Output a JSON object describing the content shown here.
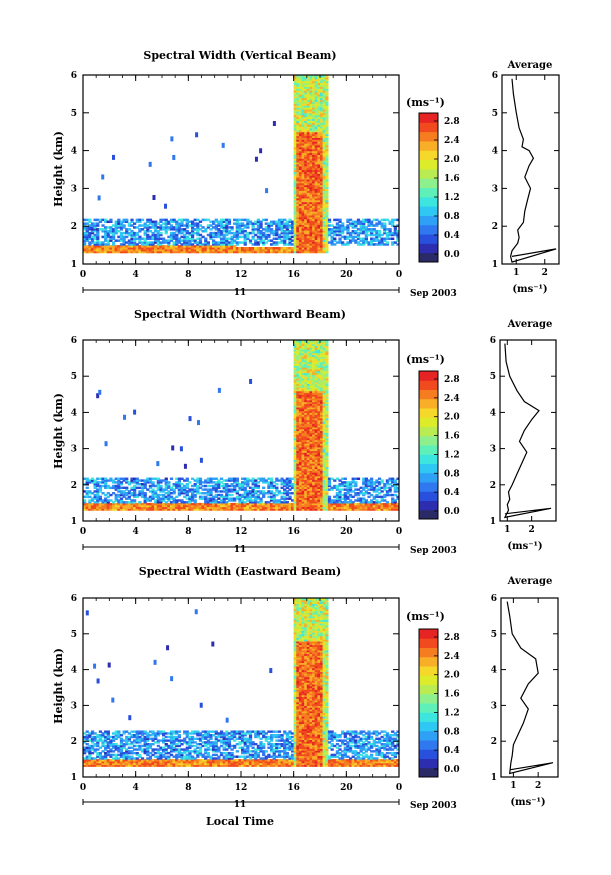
{
  "figure": {
    "xlabel": "Local Time",
    "day_label": "11",
    "date_label": "Sep 2003",
    "height_label": "Height (km)",
    "colorbar_unit": "(ms⁻¹)",
    "profile_title": "Average",
    "profile_xlabel": "(ms⁻¹)"
  },
  "panels": [
    {
      "title": "Spectral Width (Vertical Beam)",
      "profile_ticks": [
        "1",
        "2"
      ]
    },
    {
      "title": "Spectral Width (Northward Beam)",
      "profile_ticks": [
        "1",
        "2"
      ]
    },
    {
      "title": "Spectral Width (Eastward Beam)",
      "profile_ticks": [
        "1",
        "2"
      ]
    }
  ],
  "colorbar_ticks": [
    "0.0",
    "0.4",
    "0.8",
    "1.2",
    "1.6",
    "2.0",
    "2.4",
    "2.8"
  ],
  "chart_data": [
    {
      "type": "heatmap",
      "title": "Spectral Width (Vertical Beam)",
      "xlabel": "",
      "ylabel": "Height (km)",
      "x_ticks": [
        "0",
        "4",
        "8",
        "12",
        "16",
        "20",
        "0"
      ],
      "y_ticks": [
        "1",
        "2",
        "3",
        "4",
        "5",
        "6"
      ],
      "xlim": [
        0,
        24
      ],
      "ylim": [
        1,
        6
      ],
      "colorbar": {
        "label": "(ms⁻¹)",
        "range": [
          0.0,
          3.0
        ]
      },
      "features": [
        {
          "x": [
            0,
            11.5
          ],
          "y": [
            1.3,
            1.55
          ],
          "value": 2.8
        },
        {
          "x": [
            11.5,
            16
          ],
          "y": [
            1.3,
            1.45
          ],
          "value": 2.8
        },
        {
          "x": [
            0,
            24
          ],
          "y": [
            1.5,
            2.2
          ],
          "value": 0.8
        },
        {
          "x": [
            16,
            18.5
          ],
          "y": [
            1.3,
            6
          ],
          "value": 1.6
        },
        {
          "x": [
            16.2,
            18.2
          ],
          "y": [
            1.3,
            4.5
          ],
          "value": 2.9
        }
      ]
    },
    {
      "type": "line",
      "title": "Average",
      "xlabel": "(ms⁻¹)",
      "ylabel": "",
      "x_ticks": [
        "1",
        "2"
      ],
      "y_ticks": [
        "1",
        "2",
        "3",
        "4",
        "5",
        "6"
      ],
      "xlim": [
        0.5,
        2.5
      ],
      "ylim": [
        1,
        6
      ],
      "x": [
        0.85,
        0.9,
        1.0,
        1.1,
        1.25,
        1.2,
        1.45,
        1.6,
        1.45,
        1.3,
        1.5,
        1.4,
        1.3,
        1.25,
        1.05,
        1.1,
        1.05,
        0.95,
        0.85,
        0.8,
        0.85
      ],
      "y": [
        5.9,
        5.5,
        5.0,
        4.6,
        4.3,
        4.1,
        4.0,
        3.8,
        3.6,
        3.3,
        3.0,
        2.7,
        2.4,
        2.1,
        1.9,
        1.7,
        1.55,
        1.45,
        1.35,
        1.2,
        1.05
      ],
      "spike": {
        "x": 2.4,
        "y": 1.4
      }
    },
    {
      "type": "heatmap",
      "title": "Spectral Width (Northward Beam)",
      "xlabel": "",
      "ylabel": "Height (km)",
      "x_ticks": [
        "0",
        "4",
        "8",
        "12",
        "16",
        "20",
        "0"
      ],
      "y_ticks": [
        "1",
        "2",
        "3",
        "4",
        "5",
        "6"
      ],
      "xlim": [
        0,
        24
      ],
      "ylim": [
        1,
        6
      ],
      "colorbar": {
        "label": "(ms⁻¹)",
        "range": [
          0.0,
          3.0
        ]
      },
      "features": [
        {
          "x": [
            0,
            24
          ],
          "y": [
            1.3,
            1.5
          ],
          "value": 2.8
        },
        {
          "x": [
            0,
            24
          ],
          "y": [
            1.5,
            2.2
          ],
          "value": 0.8
        },
        {
          "x": [
            16,
            18.5
          ],
          "y": [
            1.3,
            6
          ],
          "value": 1.6
        },
        {
          "x": [
            16.2,
            18.2
          ],
          "y": [
            1.3,
            4.6
          ],
          "value": 2.9
        }
      ]
    },
    {
      "type": "line",
      "title": "Average",
      "xlabel": "(ms⁻¹)",
      "ylabel": "",
      "x_ticks": [
        "1",
        "2"
      ],
      "y_ticks": [
        "1",
        "2",
        "3",
        "4",
        "5",
        "6"
      ],
      "xlim": [
        0.7,
        3.0
      ],
      "ylim": [
        1,
        6
      ],
      "x": [
        0.9,
        0.95,
        1.1,
        1.4,
        1.7,
        2.3,
        2.0,
        1.7,
        1.5,
        1.8,
        1.6,
        1.4,
        1.2,
        1.05,
        1.1,
        1.0,
        1.05,
        0.9
      ],
      "y": [
        5.9,
        5.4,
        5.0,
        4.6,
        4.3,
        4.05,
        3.8,
        3.5,
        3.2,
        2.9,
        2.6,
        2.3,
        2.0,
        1.8,
        1.6,
        1.45,
        1.3,
        1.1
      ],
      "spike": {
        "x": 2.8,
        "y": 1.35
      }
    },
    {
      "type": "heatmap",
      "title": "Spectral Width (Eastward Beam)",
      "xlabel": "Local Time",
      "ylabel": "Height (km)",
      "x_ticks": [
        "0",
        "4",
        "8",
        "12",
        "16",
        "20",
        "0"
      ],
      "y_ticks": [
        "1",
        "2",
        "3",
        "4",
        "5",
        "6"
      ],
      "xlim": [
        0,
        24
      ],
      "ylim": [
        1,
        6
      ],
      "colorbar": {
        "label": "(ms⁻¹)",
        "range": [
          0.0,
          3.0
        ]
      },
      "features": [
        {
          "x": [
            0,
            24
          ],
          "y": [
            1.3,
            1.5
          ],
          "value": 2.8
        },
        {
          "x": [
            0,
            24
          ],
          "y": [
            1.5,
            2.3
          ],
          "value": 0.8
        },
        {
          "x": [
            16,
            18.5
          ],
          "y": [
            1.3,
            6
          ],
          "value": 1.6
        },
        {
          "x": [
            16.2,
            18.2
          ],
          "y": [
            1.3,
            4.8
          ],
          "value": 2.9
        }
      ]
    },
    {
      "type": "line",
      "title": "Average",
      "xlabel": "(ms⁻¹)",
      "ylabel": "",
      "x_ticks": [
        "1",
        "2"
      ],
      "y_ticks": [
        "1",
        "2",
        "3",
        "4",
        "5",
        "6"
      ],
      "xlim": [
        0.5,
        2.8
      ],
      "ylim": [
        1,
        6
      ],
      "x": [
        0.75,
        0.85,
        0.95,
        1.3,
        1.9,
        2.0,
        1.6,
        1.3,
        1.6,
        1.4,
        1.2,
        1.0,
        0.95,
        0.9,
        0.85
      ],
      "y": [
        5.9,
        5.5,
        5.0,
        4.6,
        4.3,
        3.9,
        3.6,
        3.2,
        2.9,
        2.5,
        2.2,
        1.9,
        1.6,
        1.4,
        1.1
      ],
      "spike": {
        "x": 2.6,
        "y": 1.4
      }
    }
  ]
}
